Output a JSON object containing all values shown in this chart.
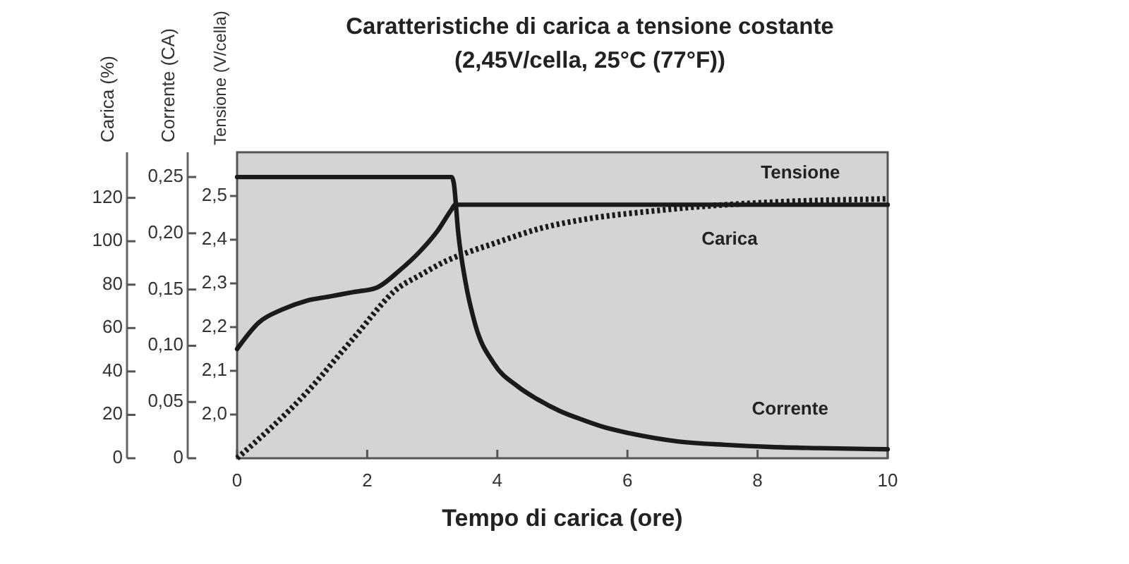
{
  "chart_data": {
    "type": "line",
    "title": "Caratteristiche di carica a tensione costante",
    "subtitle": "(2,45V/cella, 25°C (77°F))",
    "xlabel": "Tempo di carica (ore)",
    "ylabel": "Tensione (V/cella)",
    "y2label": "Corrente (CA)",
    "y3label": "Carica (%)",
    "xlim": [
      0,
      10
    ],
    "xticks": [
      0,
      2,
      4,
      6,
      8,
      10
    ],
    "ylim": [
      1.9,
      2.6
    ],
    "yticks": [
      {
        "value": 2.0,
        "label": "2,0"
      },
      {
        "value": 2.1,
        "label": "2,1"
      },
      {
        "value": 2.2,
        "label": "2,2"
      },
      {
        "value": 2.3,
        "label": "2,3"
      },
      {
        "value": 2.4,
        "label": "2,4"
      },
      {
        "value": 2.5,
        "label": "2,5"
      }
    ],
    "y2lim": [
      0,
      0.272
    ],
    "y2ticks": [
      0,
      {
        "value": 0.05,
        "label": "0,05"
      },
      {
        "value": 0.1,
        "label": "0,10"
      },
      {
        "value": 0.15,
        "label": "0,15"
      },
      {
        "value": 0.2,
        "label": "0,20"
      },
      {
        "value": 0.25,
        "label": "0,25"
      }
    ],
    "y3lim": [
      0,
      141
    ],
    "y3ticks": [
      0,
      20,
      40,
      60,
      80,
      100,
      120
    ],
    "series": [
      {
        "name": "Tensione",
        "color": "#1a1a1a",
        "line_style": "solid",
        "x": [
          0,
          0.33,
          0.69,
          1.06,
          1.42,
          1.78,
          2.14,
          2.5,
          2.79,
          3.08,
          3.3,
          3.35,
          10
        ],
        "values": [
          2.15,
          2.21,
          2.24,
          2.26,
          2.27,
          2.28,
          2.29,
          2.33,
          2.37,
          2.42,
          2.47,
          2.48,
          2.48
        ]
      },
      {
        "name": "Corrente",
        "color": "#1a1a1a",
        "line_style": "solid",
        "axis": "y2",
        "x": [
          0,
          3.3,
          3.33,
          3.4,
          3.51,
          3.66,
          3.95,
          4.31,
          4.6,
          4.96,
          5.32,
          5.68,
          6.05,
          6.77,
          7.49,
          8.21,
          8.94,
          10
        ],
        "values": [
          0.25,
          0.25,
          0.245,
          0.2,
          0.157,
          0.119,
          0.084,
          0.064,
          0.053,
          0.042,
          0.034,
          0.027,
          0.022,
          0.015,
          0.012,
          0.01,
          0.009,
          0.008
        ]
      },
      {
        "name": "Carica",
        "color": "#1a1a1a",
        "line_style": "dotted",
        "axis": "y3",
        "x": [
          0,
          1.06,
          1.78,
          2.5,
          2.79,
          3.22,
          3.51,
          3.95,
          4.67,
          5.32,
          6.41,
          7.13,
          8.21,
          10
        ],
        "values": [
          0,
          30,
          55,
          79,
          84,
          91,
          94.5,
          99,
          106,
          110,
          114,
          116,
          118,
          119.5
        ]
      }
    ]
  }
}
